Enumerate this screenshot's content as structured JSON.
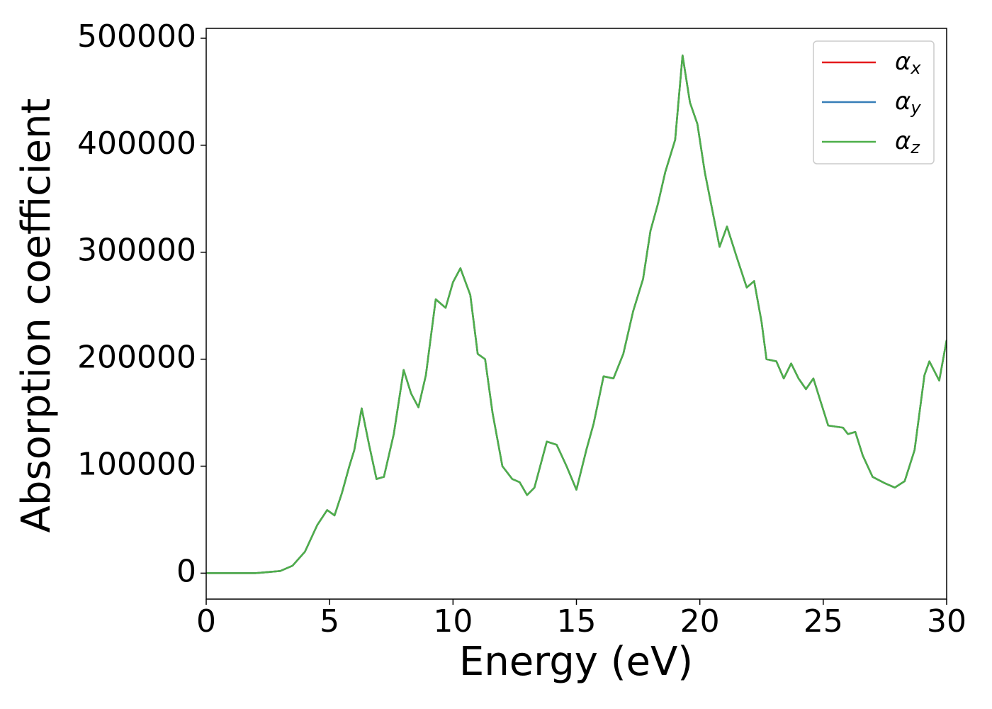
{
  "chart_data": {
    "type": "line",
    "xlabel": "Energy (eV)",
    "ylabel": "Absorption coefficient",
    "x": [
      0,
      1,
      2,
      3,
      3.5,
      4,
      4.5,
      4.9,
      5.2,
      5.5,
      5.8,
      6.0,
      6.3,
      6.6,
      6.9,
      7.2,
      7.6,
      8.0,
      8.3,
      8.6,
      8.9,
      9.3,
      9.7,
      10.0,
      10.3,
      10.7,
      11.0,
      11.3,
      11.6,
      12.0,
      12.4,
      12.7,
      13.0,
      13.3,
      13.8,
      14.2,
      14.6,
      15.0,
      15.4,
      15.7,
      16.1,
      16.5,
      16.9,
      17.3,
      17.7,
      18.0,
      18.3,
      18.6,
      19.0,
      19.3,
      19.6,
      19.9,
      20.2,
      20.5,
      20.8,
      21.1,
      21.5,
      21.9,
      22.2,
      22.5,
      22.7,
      23.1,
      23.4,
      23.7,
      24.0,
      24.3,
      24.6,
      24.9,
      25.2,
      25.8,
      26.0,
      26.3,
      26.6,
      27.0,
      27.5,
      27.9,
      28.3,
      28.7,
      29.1,
      29.3,
      29.7,
      30
    ],
    "series": [
      {
        "name": "αx",
        "color": "#e41a1c",
        "values": [
          0,
          0,
          0,
          2000,
          7000,
          20000,
          45000,
          59000,
          54000,
          75000,
          100000,
          115000,
          154000,
          120000,
          88000,
          90000,
          130000,
          190000,
          168000,
          155000,
          185000,
          256000,
          248000,
          272000,
          285000,
          260000,
          205000,
          200000,
          150000,
          100000,
          88000,
          85000,
          73000,
          80000,
          123000,
          120000,
          100000,
          78000,
          115000,
          140000,
          184000,
          182000,
          205000,
          245000,
          275000,
          320000,
          345000,
          375000,
          405000,
          484000,
          440000,
          420000,
          375000,
          340000,
          305000,
          324000,
          295000,
          267000,
          273000,
          235000,
          200000,
          198000,
          182000,
          196000,
          182000,
          172000,
          182000,
          160000,
          138000,
          136000,
          130000,
          132000,
          110000,
          90000,
          84000,
          80000,
          86000,
          115000,
          185000,
          198000,
          180000,
          218000
        ]
      },
      {
        "name": "αy",
        "color": "#377eb8",
        "values": [
          0,
          0,
          0,
          2000,
          7000,
          20000,
          45000,
          59000,
          54000,
          75000,
          100000,
          115000,
          154000,
          120000,
          88000,
          90000,
          130000,
          190000,
          168000,
          155000,
          185000,
          256000,
          248000,
          272000,
          285000,
          260000,
          205000,
          200000,
          150000,
          100000,
          88000,
          85000,
          73000,
          80000,
          123000,
          120000,
          100000,
          78000,
          115000,
          140000,
          184000,
          182000,
          205000,
          245000,
          275000,
          320000,
          345000,
          375000,
          405000,
          484000,
          440000,
          420000,
          375000,
          340000,
          305000,
          324000,
          295000,
          267000,
          273000,
          235000,
          200000,
          198000,
          182000,
          196000,
          182000,
          172000,
          182000,
          160000,
          138000,
          136000,
          130000,
          132000,
          110000,
          90000,
          84000,
          80000,
          86000,
          115000,
          185000,
          198000,
          180000,
          218000
        ]
      },
      {
        "name": "αz",
        "color": "#4daf4a",
        "values": [
          0,
          0,
          0,
          2000,
          7000,
          20000,
          45000,
          59000,
          54000,
          75000,
          100000,
          115000,
          154000,
          120000,
          88000,
          90000,
          130000,
          190000,
          168000,
          155000,
          185000,
          256000,
          248000,
          272000,
          285000,
          260000,
          205000,
          200000,
          150000,
          100000,
          88000,
          85000,
          73000,
          80000,
          123000,
          120000,
          100000,
          78000,
          115000,
          140000,
          184000,
          182000,
          205000,
          245000,
          275000,
          320000,
          345000,
          375000,
          405000,
          484000,
          440000,
          420000,
          375000,
          340000,
          305000,
          324000,
          295000,
          267000,
          273000,
          235000,
          200000,
          198000,
          182000,
          196000,
          182000,
          172000,
          182000,
          160000,
          138000,
          136000,
          130000,
          132000,
          110000,
          90000,
          84000,
          80000,
          86000,
          115000,
          185000,
          198000,
          180000,
          218000
        ]
      }
    ],
    "xlim": [
      0,
      30
    ],
    "xticks": [
      0,
      5,
      10,
      15,
      20,
      25,
      30
    ],
    "ylim": [
      -24250,
      509250
    ],
    "yticks": [
      0,
      100000,
      200000,
      300000,
      400000,
      500000
    ],
    "legend": "upper right",
    "grid": false
  }
}
